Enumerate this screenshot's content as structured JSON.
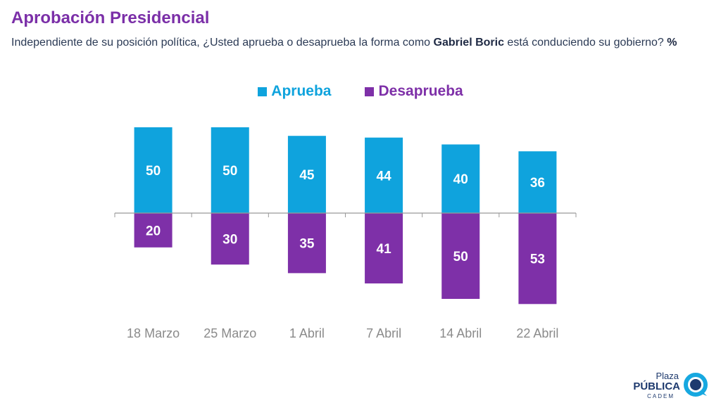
{
  "header": {
    "title": "Aprobación Presidencial",
    "subtitle_part1": "Independiente de su posición política, ¿Usted aprueba o desaprueba la forma como ",
    "subtitle_bold": "Gabriel Boric",
    "subtitle_part2": " está conduciendo su gobierno? ",
    "subtitle_unit": "%"
  },
  "logo": {
    "line1": "Plaza",
    "line2": "PÚBLICA",
    "line3": "CADEM"
  },
  "colors": {
    "aprueba": "#0fa3dd",
    "desaprueba": "#7e30a8",
    "axis": "#999999",
    "tick": "#8a8a8a"
  },
  "chart_data": {
    "type": "bar",
    "categories": [
      "18 Marzo",
      "25 Marzo",
      "1 Abril",
      "7 Abril",
      "14 Abril",
      "22 Abril"
    ],
    "series": [
      {
        "name": "Aprueba",
        "values": [
          50,
          50,
          45,
          44,
          40,
          36
        ],
        "direction": "up"
      },
      {
        "name": "Desaprueba",
        "values": [
          20,
          30,
          35,
          41,
          50,
          53
        ],
        "direction": "down"
      }
    ],
    "title": "Aprobación Presidencial",
    "ylim": [
      -55,
      50
    ],
    "grid": false,
    "legend": "top-center",
    "data_labels": true
  }
}
